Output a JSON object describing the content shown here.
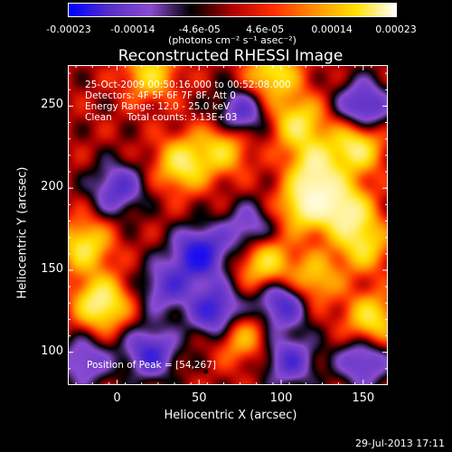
{
  "colorbar": {
    "ticks": [
      "-0.00023",
      "-0.00014",
      "-4.6e-05",
      "4.6e-05",
      "0.00014",
      "0.00023"
    ],
    "units": "(photons cm⁻² s⁻¹ asec⁻²)"
  },
  "chart_data": {
    "type": "heatmap",
    "title": "Reconstructed RHESSI Image",
    "xlabel": "Heliocentric X (arcsec)",
    "ylabel": "Heliocentric Y (arcsec)",
    "xlim": [
      -30,
      165
    ],
    "ylim": [
      80,
      275
    ],
    "xticks": [
      "0",
      "50",
      "100",
      "150"
    ],
    "yticks": [
      "100",
      "150",
      "200",
      "250"
    ],
    "colorbar_range": [
      -0.00023,
      0.00023
    ],
    "colormap": [
      "#0000ff",
      "#5a30c8",
      "#8a4bd0",
      "#000000",
      "#b00000",
      "#ff3000",
      "#ff9000",
      "#ffe000",
      "#ffffff"
    ],
    "blobs": [
      {
        "x": 130,
        "y": 205,
        "v": 1.0
      },
      {
        "x": 122,
        "y": 214,
        "v": 0.95
      },
      {
        "x": 115,
        "y": 190,
        "v": 0.85
      },
      {
        "x": 140,
        "y": 185,
        "v": 0.8
      },
      {
        "x": 145,
        "y": 225,
        "v": 0.85
      },
      {
        "x": 110,
        "y": 240,
        "v": 0.7
      },
      {
        "x": 95,
        "y": 270,
        "v": 0.7
      },
      {
        "x": 20,
        "y": 270,
        "v": 0.6
      },
      {
        "x": -10,
        "y": 130,
        "v": 0.9
      },
      {
        "x": -20,
        "y": 165,
        "v": 0.7
      },
      {
        "x": 40,
        "y": 215,
        "v": 0.75
      },
      {
        "x": 65,
        "y": 225,
        "v": 0.6
      },
      {
        "x": 90,
        "y": 155,
        "v": 0.7
      },
      {
        "x": 120,
        "y": 145,
        "v": 0.55
      },
      {
        "x": 150,
        "y": 165,
        "v": 0.6
      },
      {
        "x": 155,
        "y": 120,
        "v": 0.7
      },
      {
        "x": 75,
        "y": 110,
        "v": 0.5
      },
      {
        "x": 130,
        "y": 210,
        "v": -1.0
      },
      {
        "x": 50,
        "y": 160,
        "v": -0.9
      },
      {
        "x": 20,
        "y": 100,
        "v": -0.7
      },
      {
        "x": 60,
        "y": 125,
        "v": -0.8
      },
      {
        "x": 100,
        "y": 130,
        "v": -0.7
      },
      {
        "x": 150,
        "y": 250,
        "v": -0.7
      },
      {
        "x": 75,
        "y": 245,
        "v": -0.6
      },
      {
        "x": 0,
        "y": 200,
        "v": -0.6
      },
      {
        "x": 105,
        "y": 95,
        "v": -0.6
      },
      {
        "x": 150,
        "y": 95,
        "v": -0.6
      },
      {
        "x": 30,
        "y": 140,
        "v": -0.55
      },
      {
        "x": 80,
        "y": 175,
        "v": -0.5
      },
      {
        "x": -20,
        "y": 95,
        "v": -0.5
      }
    ],
    "peak": {
      "x": 54,
      "y": 267
    }
  },
  "info": {
    "line1": "25-Oct-2009 00:50:16.000 to 00:52:08.000",
    "line2": "Detectors: 4F 5F 6F 7F 8F, Att 0",
    "line3": "Energy Range: 12.0 - 25.0 keV",
    "line4": "Clean     Total counts: 3.13E+03",
    "peak": "Position of Peak = [54,267]"
  },
  "footer": {
    "timestamp": "29-Jul-2013 17:11"
  }
}
